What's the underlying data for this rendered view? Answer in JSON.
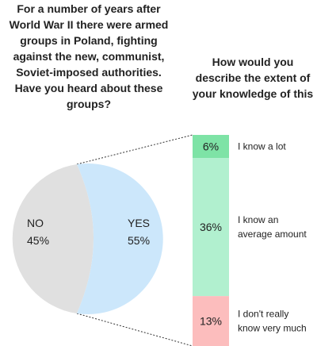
{
  "chart_data": [
    {
      "type": "pie",
      "title_lines": [
        "For a number of years after",
        "World War II there were armed",
        "groups in Poland, fighting",
        "against the new, communist,",
        "Soviet-imposed authorities.",
        "Have you heard about these",
        "groups?"
      ],
      "slices": [
        {
          "label": "NO",
          "value": 45,
          "value_label": "45%",
          "color": "#e0e0e0"
        },
        {
          "label": "YES",
          "value": 55,
          "value_label": "55%",
          "color": "#cce7fb"
        }
      ]
    },
    {
      "type": "bar",
      "stacked": true,
      "title_lines": [
        "How would you",
        "describe the extent of",
        "your knowledge of this"
      ],
      "segments": [
        {
          "label_lines": [
            "I know a lot"
          ],
          "value": 6,
          "value_label": "6%",
          "color": "#7ee3a6"
        },
        {
          "label_lines": [
            "I know an",
            "average amount"
          ],
          "value": 36,
          "value_label": "36%",
          "color": "#b1f0cf"
        },
        {
          "label_lines": [
            "I don't really",
            "know very much"
          ],
          "value": 13,
          "value_label": "13%",
          "color": "#fcbdbd"
        }
      ]
    }
  ],
  "colors": {
    "connector": "#333333",
    "text": "#222222"
  }
}
